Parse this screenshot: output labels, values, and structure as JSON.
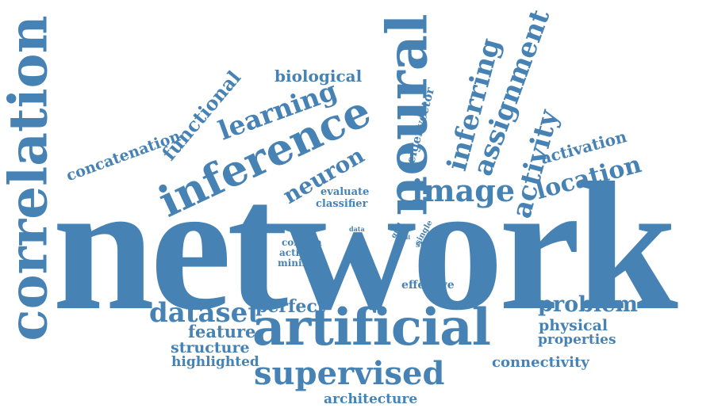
{
  "cloud": {
    "color": "#4682b4",
    "words": {
      "network": "network",
      "correlation": "correlation",
      "neural": "neural",
      "inference": "inference",
      "artificial": "artificial",
      "supervised": "supervised",
      "learning": "learning",
      "functional": "functional",
      "biological": "biological",
      "concatenation": "concatenation",
      "neuron": "neuron",
      "image": "image",
      "inferring": "inferring",
      "assignment": "assignment",
      "eigenvector": "eigenvector",
      "activity": "activity",
      "activation": "activation",
      "location": "location",
      "evaluate": "evaluate",
      "classifier": "classifier",
      "data": "data",
      "grid": "grid",
      "cell": "cell",
      "single": "single",
      "study": "study",
      "contain": "contain",
      "activate": "activate",
      "minimal": "minimal",
      "effective": "effective",
      "dataset": "dataset",
      "perfect": "perfect",
      "problem": "problem",
      "feature": "feature",
      "structure": "structure",
      "highlighted": "highlighted",
      "physical": "physical",
      "properties": "properties",
      "connectivity": "connectivity",
      "architecture": "architecture"
    }
  }
}
